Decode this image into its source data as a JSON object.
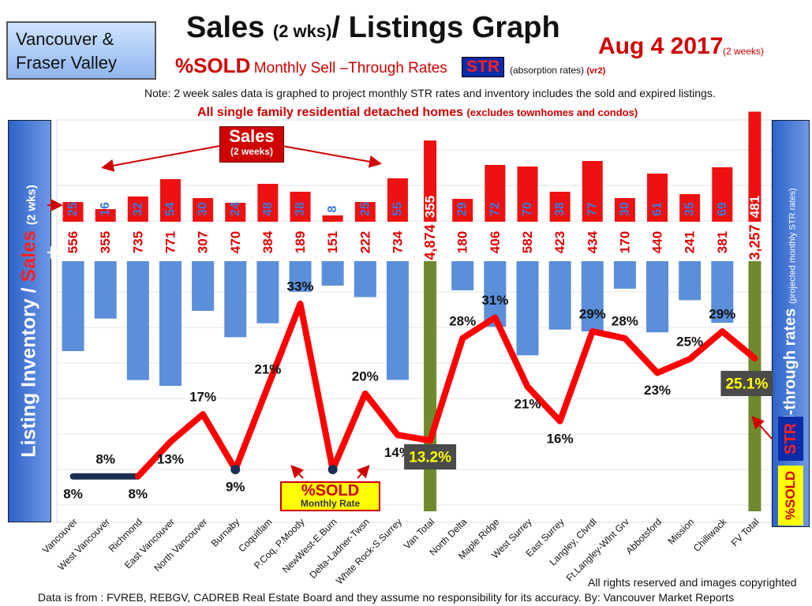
{
  "region_box": {
    "line1": "Vancouver &",
    "line2": "Fraser Valley"
  },
  "header": {
    "title_main": "Sales",
    "title_small": "(2 wks)",
    "title_rest": "/ Listings Graph",
    "date": "Aug 4 2017",
    "date_sub": "(2 weeks)",
    "sold_big": "%SOLD",
    "sold_text": "Monthly Sell –Through Rates",
    "str_badge": "STR",
    "absorption": "(absorption rates)",
    "absorption_tag": "(vr2)",
    "note": "Note: 2 week sales data is graphed to project monthly STR rates and inventory includes the sold and expired listings.",
    "subtitle": "All single family residential detached homes",
    "subtitle_small": "(excludes townhomes and condos)"
  },
  "left_axis": {
    "part1": "Listing Inventory /",
    "part2": "Sales",
    "part3": "(2  wks)"
  },
  "right_axis": {
    "label": "Sell-through rates",
    "small": "(projected monthly STR rates)",
    "str": "STR",
    "sold": "%SOLD"
  },
  "sales_tag": {
    "line1": "Sales",
    "line2": "(2 weeks)"
  },
  "monthly_tag": {
    "line1": "%SOLD",
    "line2": "Monthly Rate"
  },
  "footer": {
    "rights": "All rights reserved and  images copyrighted",
    "source": "Data is from : FVREB, REBGV, CADREB Real Estate Board and they assume  no responsibility for its accuracy.  By:  Vancouver Market Reports"
  },
  "colors": {
    "sales_bar": "#ee1111",
    "inventory_bar": "#5b8fd9",
    "total_bar": "#6f8a2e",
    "line_low": "#1b2f55",
    "line_high": "#ff0000",
    "value_blue": "#3a7ad8"
  },
  "chart_data": {
    "type": "bar",
    "categories": [
      "Vancouver",
      "West Vancouver",
      "Richmond",
      "East Vancouver",
      "North Vancouver",
      "Burnaby",
      "Coquitlam",
      "P.Coq, P.Moody",
      "NewWest-E.Burn",
      "Delta-Ladner-Twsn",
      "White Rock-S.Surrey",
      "Van Total",
      "North Delta",
      "Maple Ridge",
      "West Surrey",
      "East Surrey",
      "Langley, Clvrdl",
      "Ft.Langley-Wlnt Grv",
      "Abbotsford",
      "Mission",
      "Chilliwack",
      "FV Total"
    ],
    "series": [
      {
        "name": "Sales",
        "values": [
          25,
          16,
          32,
          54,
          30,
          24,
          48,
          38,
          8,
          25,
          55,
          355,
          29,
          72,
          70,
          38,
          77,
          30,
          61,
          35,
          69,
          481
        ]
      },
      {
        "name": "Listing Inventory",
        "values": [
          556,
          355,
          735,
          771,
          307,
          470,
          384,
          189,
          151,
          222,
          734,
          4874,
          180,
          406,
          582,
          423,
          434,
          170,
          440,
          241,
          381,
          3257
        ]
      },
      {
        "name": "%SOLD",
        "values": [
          8,
          8,
          8,
          13,
          17,
          9,
          21,
          33,
          9,
          20,
          14,
          13.2,
          28,
          31,
          21,
          16,
          29,
          28,
          23,
          25,
          29,
          25.1
        ]
      }
    ],
    "sales_labels": [
      "25",
      "16",
      "32",
      "54",
      "30",
      "24",
      "48",
      "38",
      "8",
      "25",
      "55",
      "355",
      "29",
      "72",
      "70",
      "38",
      "77",
      "30",
      "61",
      "35",
      "69",
      "481"
    ],
    "inventory_labels": [
      "556",
      "355",
      "735",
      "771",
      "307",
      "470",
      "384",
      "189",
      "151",
      "222",
      "734",
      "4,874",
      "180",
      "406",
      "582",
      "423",
      "434",
      "170",
      "440",
      "241",
      "381",
      "3,257"
    ],
    "sold_labels": [
      "8%",
      "8%",
      "8%",
      "13%",
      "17%",
      "9%",
      "21%",
      "33%",
      "9%",
      "20%",
      "14%",
      "13.2%",
      "28%",
      "31%",
      "21%",
      "16%",
      "29%",
      "28%",
      "23%",
      "25%",
      "29%",
      "25.1%"
    ],
    "total_indices": [
      11,
      21
    ],
    "legend": "none"
  }
}
